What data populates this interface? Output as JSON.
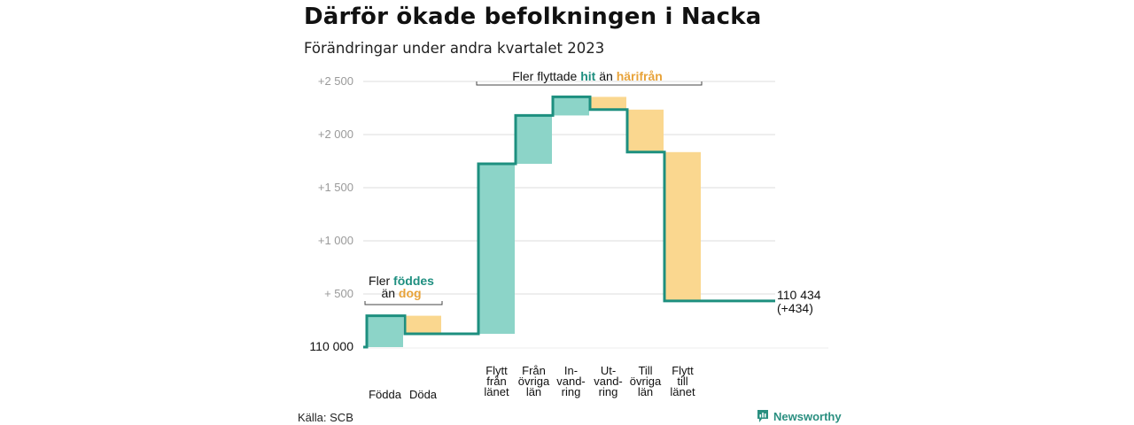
{
  "title": "Därför ökade befolkningen i Nacka",
  "subtitle": "Förändringar under andra kvartalet 2023",
  "source": "Källa: SCB",
  "brand": "Newsworthy",
  "colors": {
    "increase": "#8cd4c8",
    "decrease": "#fad78f",
    "line": "#1d8f7f",
    "teal_text": "#1f8f80",
    "orange_text": "#e8a33a",
    "grid": "#dcdcdc"
  },
  "chart_data": {
    "type": "waterfall",
    "base_label": "110 000",
    "ylim": [
      0,
      2500
    ],
    "y_ticks": [
      {
        "value": 500,
        "label": "+ 500"
      },
      {
        "value": 1000,
        "label": "+1 000"
      },
      {
        "value": 1500,
        "label": "+1 500"
      },
      {
        "value": 2000,
        "label": "+2 000"
      },
      {
        "value": 2500,
        "label": "+2 500"
      }
    ],
    "steps": [
      {
        "label": [
          "Födda"
        ],
        "from": 0,
        "to": 295,
        "kind": "increase"
      },
      {
        "label": [
          "Döda"
        ],
        "from": 295,
        "to": 125,
        "kind": "decrease"
      },
      {
        "label": [
          "Flytt",
          "från",
          "länet"
        ],
        "from": 125,
        "to": 1725,
        "kind": "increase"
      },
      {
        "label": [
          "Från",
          "övriga",
          "län"
        ],
        "from": 1725,
        "to": 2180,
        "kind": "increase"
      },
      {
        "label": [
          "In-",
          "vand-",
          "ring"
        ],
        "from": 2180,
        "to": 2355,
        "kind": "increase"
      },
      {
        "label": [
          "Ut-",
          "vand-",
          "ring"
        ],
        "from": 2355,
        "to": 2235,
        "kind": "decrease"
      },
      {
        "label": [
          "Till",
          "övriga",
          "län"
        ],
        "from": 2235,
        "to": 1835,
        "kind": "decrease"
      },
      {
        "label": [
          "Flytt",
          "till",
          "länet"
        ],
        "from": 1835,
        "to": 434,
        "kind": "decrease"
      }
    ],
    "end_label": "110 434",
    "end_change": "(+434)",
    "annotations": {
      "births": {
        "line1": "Fler",
        "highlight1": "föddes",
        "line2": "än",
        "highlight2": "dog"
      },
      "moves": {
        "text": "Fler flyttade",
        "highlight1": "hit",
        "mid": "än",
        "highlight2": "härifrån"
      }
    }
  }
}
